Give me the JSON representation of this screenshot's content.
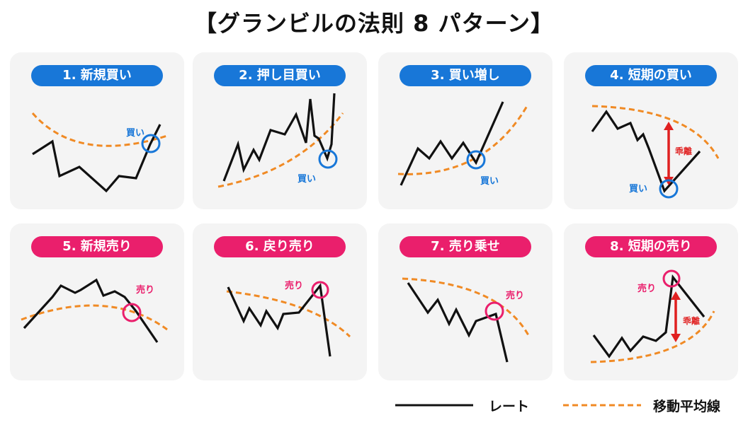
{
  "title": "【グランビルの法則 8 パターン】",
  "colors": {
    "buy": "#1877d8",
    "sell": "#ea1f6c",
    "moving_average": "#f08a24",
    "rate": "#111111",
    "divergence": "#e02020",
    "panel_bg": "#f4f4f4"
  },
  "patterns": [
    {
      "label": "1. 新規買い",
      "type": "buy",
      "signal": "買い"
    },
    {
      "label": "2. 押し目買い",
      "type": "buy",
      "signal": "買い"
    },
    {
      "label": "3. 買い増し",
      "type": "buy",
      "signal": "買い"
    },
    {
      "label": "4. 短期の買い",
      "type": "buy",
      "signal": "買い",
      "divergence": "乖離"
    },
    {
      "label": "5. 新規売り",
      "type": "sell",
      "signal": "売り"
    },
    {
      "label": "6. 戻り売り",
      "type": "sell",
      "signal": "売り"
    },
    {
      "label": "7. 売り乗せ",
      "type": "sell",
      "signal": "売り"
    },
    {
      "label": "8. 短期の売り",
      "type": "sell",
      "signal": "売り",
      "divergence": "乖離"
    }
  ],
  "legend": {
    "rate": "レート",
    "moving_average": "移動平均線"
  }
}
